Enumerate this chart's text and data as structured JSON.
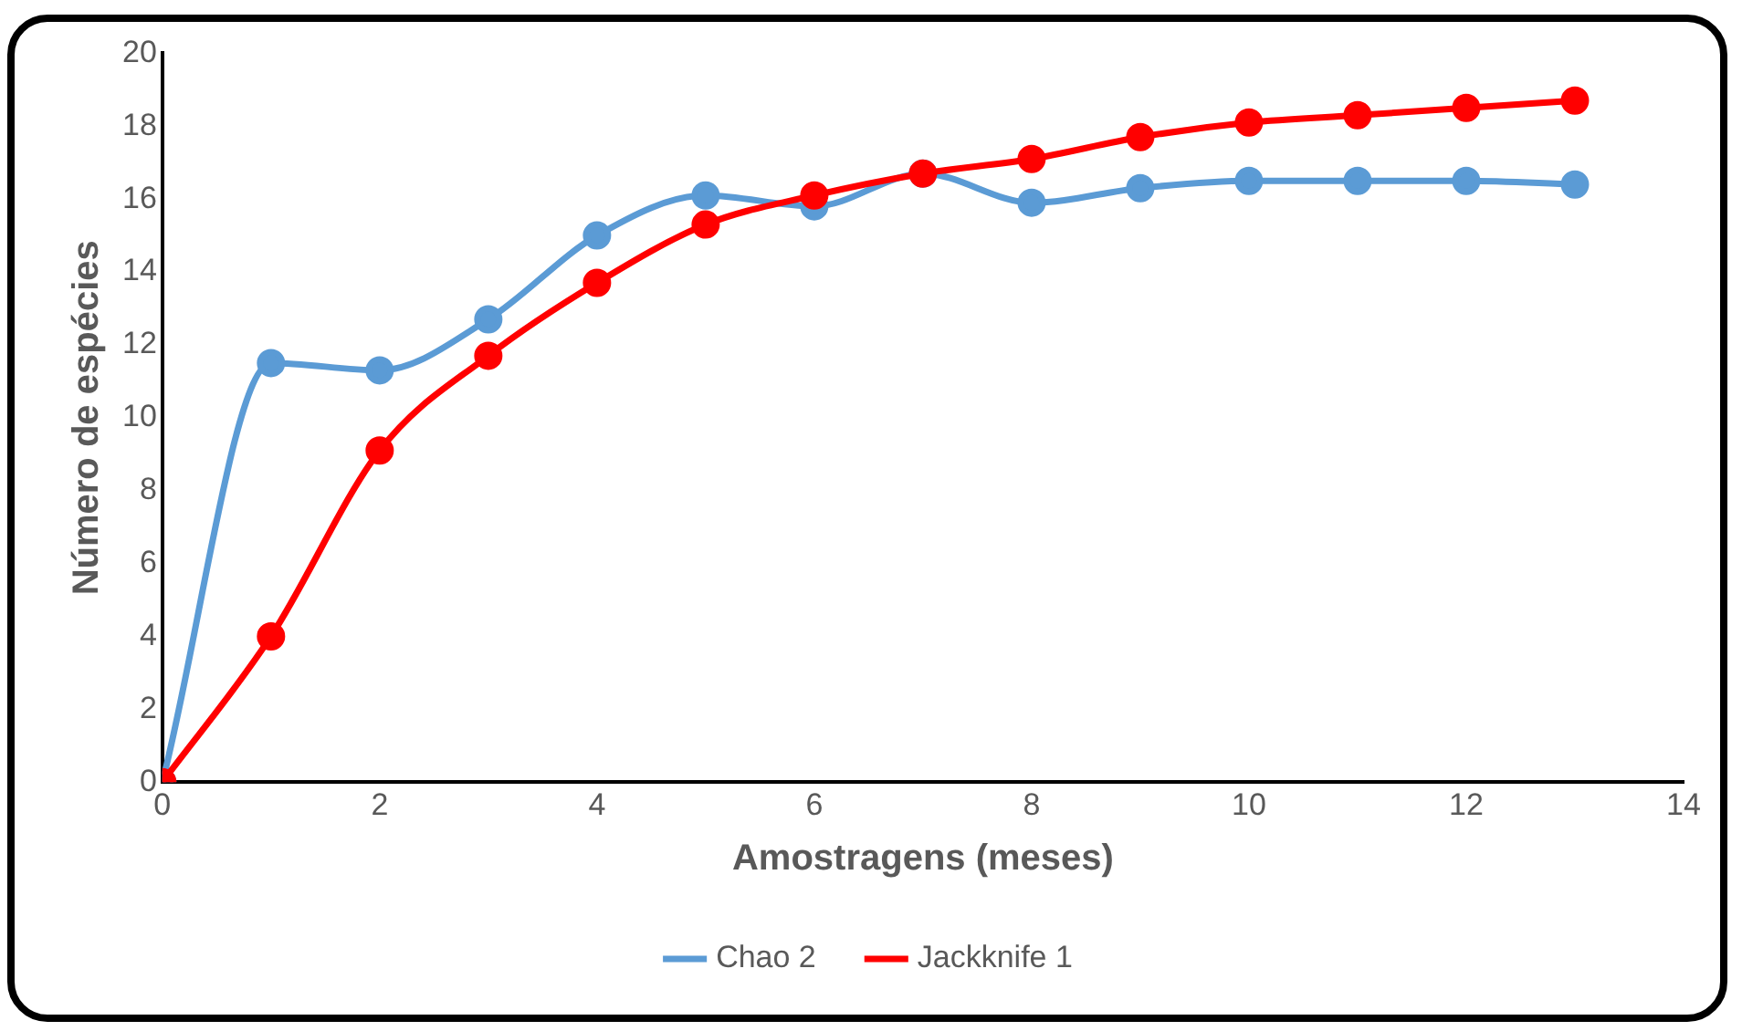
{
  "chart_data": {
    "type": "line",
    "xlabel": "Amostragens (meses)",
    "ylabel": "Número de espécies",
    "x": [
      0,
      1,
      2,
      3,
      4,
      5,
      6,
      7,
      8,
      9,
      10,
      11,
      12,
      13
    ],
    "series": [
      {
        "name": "Chao 2",
        "color": "#5b9bd5",
        "values": [
          0,
          11.5,
          11.3,
          12.7,
          15.0,
          16.1,
          15.8,
          16.7,
          15.9,
          16.3,
          16.5,
          16.5,
          16.5,
          16.4
        ]
      },
      {
        "name": "Jackknife 1",
        "color": "#ff0000",
        "values": [
          0,
          4.0,
          9.1,
          11.7,
          13.7,
          15.3,
          16.1,
          16.7,
          17.1,
          17.7,
          18.1,
          18.3,
          18.5,
          18.7
        ]
      }
    ],
    "xlim": [
      0,
      14
    ],
    "xticks": [
      0,
      2,
      4,
      6,
      8,
      10,
      12,
      14
    ],
    "ylim": [
      0,
      20
    ],
    "yticks": [
      0,
      2,
      4,
      6,
      8,
      10,
      12,
      14,
      16,
      18,
      20
    ],
    "grid": false,
    "legend": "bottom",
    "marker": "circle",
    "line_style": "solid"
  }
}
